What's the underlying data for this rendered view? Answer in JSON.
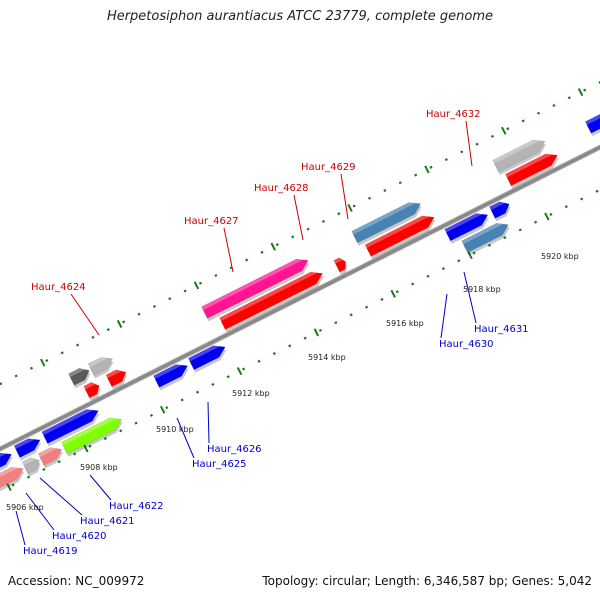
{
  "title": "Herpetosiphon aurantiacus ATCC 23779, complete genome",
  "footer": {
    "accession": "Accession: NC_009972",
    "summary": "Topology: circular; Length: 6,346,587 bp; Genes: 5,042"
  },
  "ticks": [
    "5906 kbp",
    "5908 kbp",
    "5910 kbp",
    "5912 kbp",
    "5914 kbp",
    "5916 kbp",
    "5918 kbp",
    "5920 kbp"
  ],
  "labels": {
    "forward": [
      "Haur_4624",
      "Haur_4627",
      "Haur_4628",
      "Haur_4629",
      "Haur_4632"
    ],
    "reverse": [
      "Haur_4619",
      "Haur_4620",
      "Haur_4621",
      "Haur_4622",
      "Haur_4625",
      "Haur_4626",
      "Haur_4630",
      "Haur_4631"
    ]
  },
  "colors": {
    "forward_label": "#cc0000",
    "reverse_label": "#0000cc",
    "cds": "#ff0000",
    "gene_blue": "#0000ee",
    "gene_steel": "#4682b4",
    "gene_pink": "#ff1493",
    "gene_salmon": "#f08080",
    "gene_green": "#7fff00",
    "gene_gray": "#b4b4b4",
    "gene_dark": "#5a5a5a",
    "backbone": "#888888",
    "tick_green": "#1a7a1a"
  }
}
